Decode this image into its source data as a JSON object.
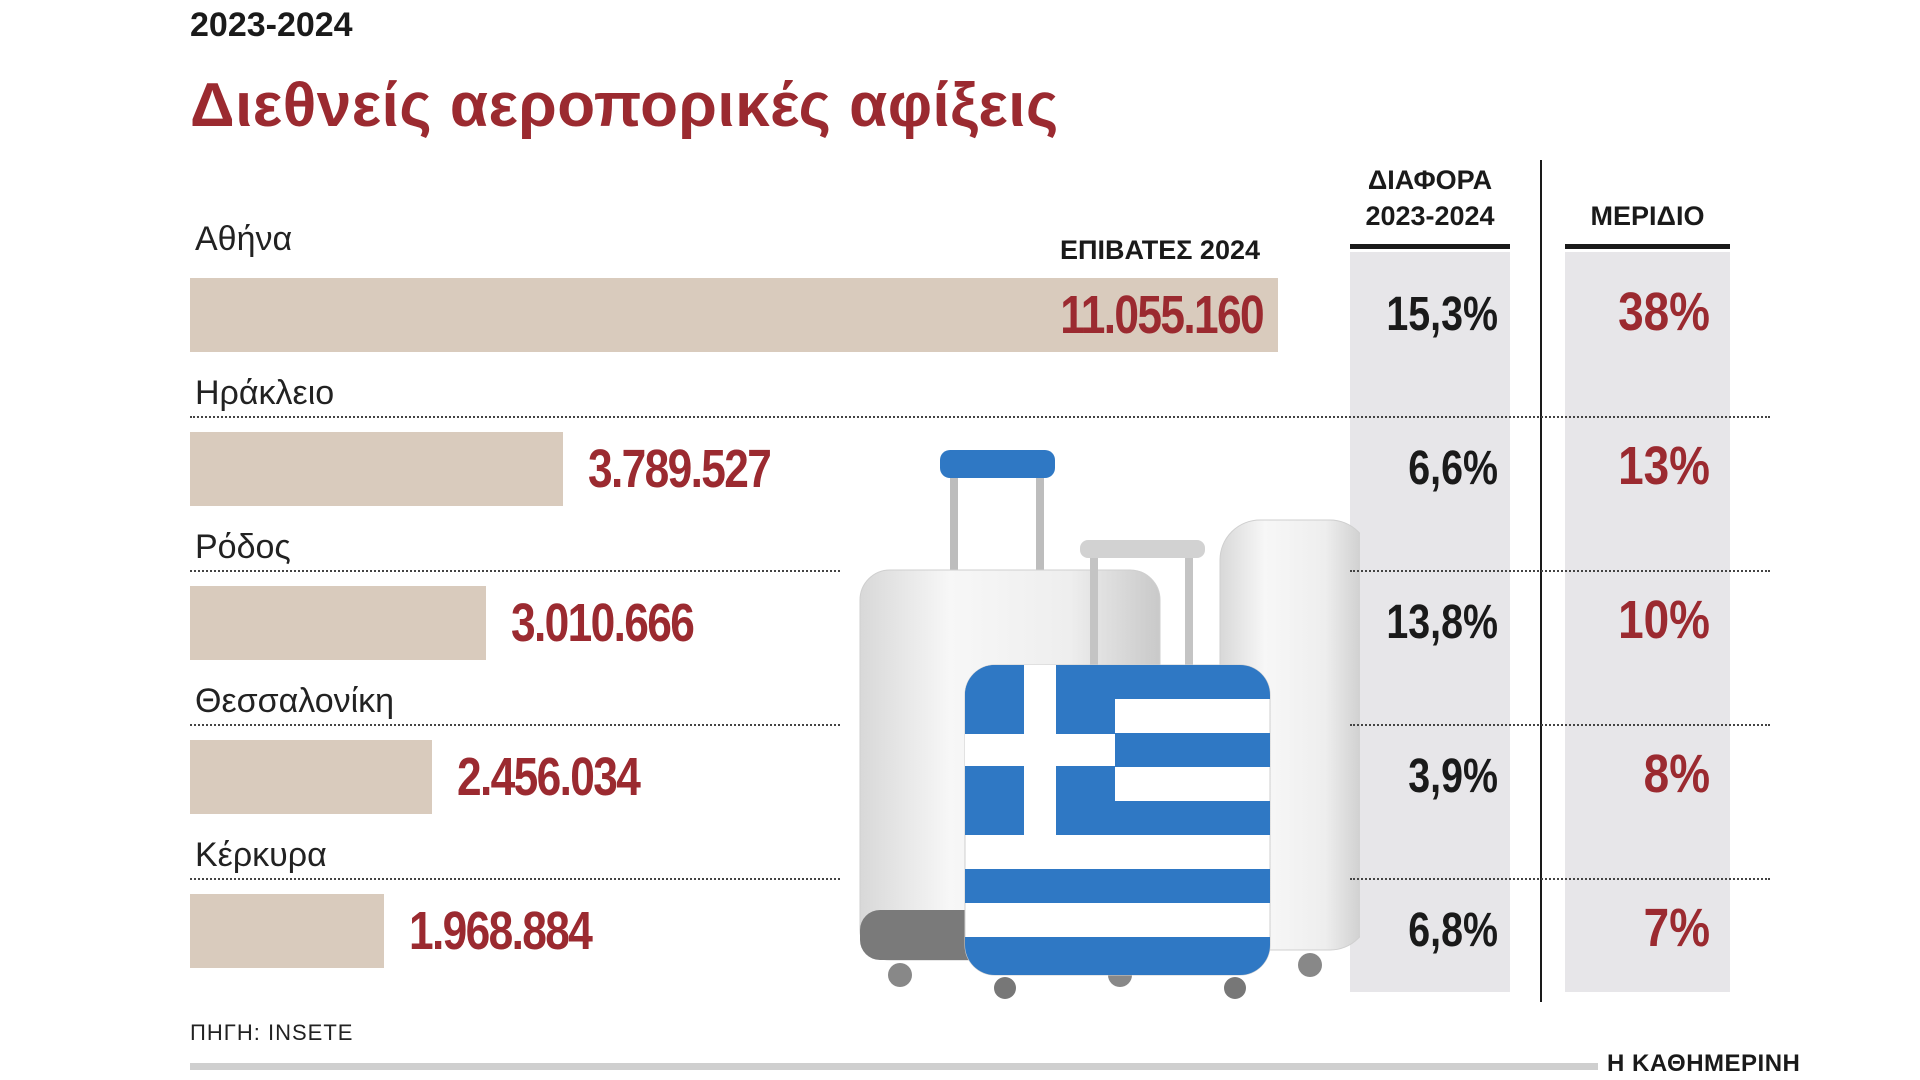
{
  "period": "2023-2024",
  "title": "Διεθνείς αεροπορικές αφίξεις",
  "headers": {
    "passengers": "ΕΠΙΒΑΤΕΣ 2024",
    "difference_line1": "ΔΙΑΦΟΡΑ",
    "difference_line2": "2023-2024",
    "share": "ΜΕΡΙΔΙΟ"
  },
  "source": "ΠΗΓΗ: INSETE",
  "brand": "Η ΚΑΘΗΜΕΡΙΝΗ",
  "colors": {
    "title": "#9b2a30",
    "bar": "#d9cbbd",
    "column_bg": "#e7e6e9"
  },
  "chart_data": {
    "type": "bar",
    "categories": [
      "Αθήνα",
      "Ηράκλειο",
      "Ρόδος",
      "Θεσσαλονίκη",
      "Κέρκυρα"
    ],
    "values": [
      11055160,
      3789527,
      3010666,
      2456034,
      1968884
    ],
    "value_labels": [
      "11.055.160",
      "3.789.527",
      "3.010.666",
      "2.456.034",
      "1.968.884"
    ],
    "difference_2023_2024": [
      "15,3%",
      "6,6%",
      "13,8%",
      "3,9%",
      "6,8%"
    ],
    "share": [
      "38%",
      "13%",
      "10%",
      "8%",
      "7%"
    ],
    "orientation": "horizontal"
  }
}
